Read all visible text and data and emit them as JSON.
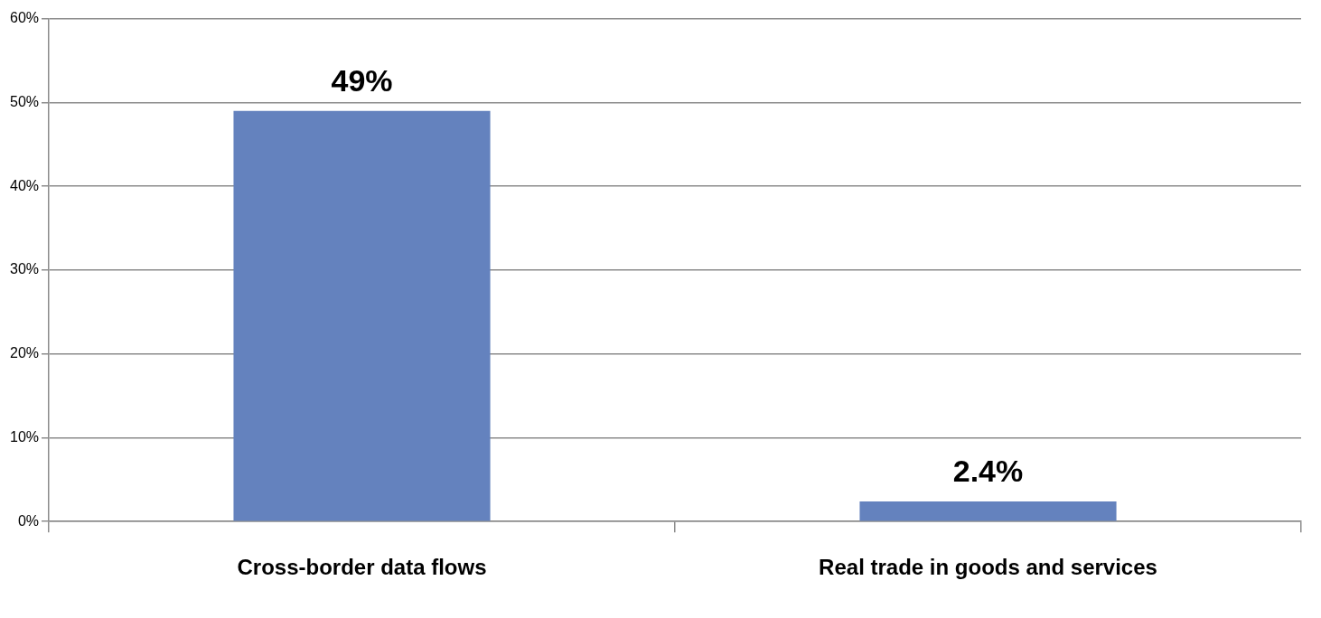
{
  "chart_data": {
    "type": "bar",
    "categories": [
      "Cross-border data flows",
      "Real trade in goods and services"
    ],
    "values": [
      49,
      2.4
    ],
    "color": "#6482be",
    "value_labels": [
      "49%",
      "2.4%"
    ],
    "ylim": [
      0,
      60
    ],
    "yticks": [
      {
        "value": 0,
        "label": "0%"
      },
      {
        "value": 10,
        "label": "10%"
      },
      {
        "value": 20,
        "label": "20%"
      },
      {
        "value": 30,
        "label": "30%"
      },
      {
        "value": 40,
        "label": "40%"
      },
      {
        "value": 50,
        "label": "50%"
      },
      {
        "value": 60,
        "label": "60%"
      }
    ],
    "grid": "y",
    "legend": false
  }
}
